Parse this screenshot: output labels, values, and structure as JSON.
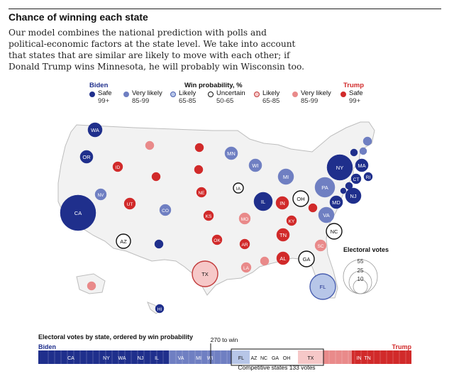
{
  "header": {
    "title": "Chance of winning each state",
    "description": "Our model combines the national prediction with polls and political-economic factors at the state level. We take into account that states that are similar are likely to move with each other; if Donald Trump wins Minnesota, he will probably win Wisconsin too."
  },
  "legend": {
    "biden_label": "Biden",
    "trump_label": "Trump",
    "heading": "Win probability, %",
    "items": [
      {
        "name": "Safe",
        "range": "99+",
        "fill": "#1f2f8c",
        "stroke": "#1f2f8c"
      },
      {
        "name": "Very likely",
        "range": "85-99",
        "fill": "#6f7fc2",
        "stroke": "#6f7fc2"
      },
      {
        "name": "Likely",
        "range": "65-85",
        "fill": "#b7c6e8",
        "stroke": "#4a5fb0"
      },
      {
        "name": "Uncertain",
        "range": "50-65",
        "fill": "#ffffff",
        "stroke": "#111111"
      },
      {
        "name": "Likely",
        "range": "65-85",
        "fill": "#f6c8c8",
        "stroke": "#c23b3b"
      },
      {
        "name": "Very likely",
        "range": "85-99",
        "fill": "#e98a8a",
        "stroke": "#e98a8a"
      },
      {
        "name": "Safe",
        "range": "99+",
        "fill": "#d12a2a",
        "stroke": "#d12a2a"
      }
    ]
  },
  "colors": {
    "biden_safe": "#1f2f8c",
    "biden_very_likely": "#6f7fc2",
    "biden_likely": "#b7c6e8",
    "uncertain": "#ffffff",
    "trump_likely": "#f6c8c8",
    "trump_very_likely": "#e98a8a",
    "trump_safe": "#d12a2a",
    "map_land": "#f2f2f2",
    "map_border": "#bdbdbd"
  },
  "states": [
    {
      "abbr": "WA",
      "category": "biden_safe",
      "labeled": true
    },
    {
      "abbr": "OR",
      "category": "biden_safe",
      "labeled": true
    },
    {
      "abbr": "CA",
      "category": "biden_safe",
      "labeled": true
    },
    {
      "abbr": "NV",
      "category": "biden_very_likely",
      "labeled": true
    },
    {
      "abbr": "ID",
      "category": "trump_safe",
      "labeled": true
    },
    {
      "abbr": "MT",
      "category": "trump_very_likely",
      "labeled": false
    },
    {
      "abbr": "UT",
      "category": "trump_safe",
      "labeled": true
    },
    {
      "abbr": "AZ",
      "category": "uncertain",
      "labeled": true
    },
    {
      "abbr": "CO",
      "category": "biden_very_likely",
      "labeled": true
    },
    {
      "abbr": "NM",
      "category": "biden_safe",
      "labeled": false
    },
    {
      "abbr": "WY",
      "category": "trump_safe",
      "labeled": false
    },
    {
      "abbr": "ND",
      "category": "trump_safe",
      "labeled": false
    },
    {
      "abbr": "SD",
      "category": "trump_safe",
      "labeled": false
    },
    {
      "abbr": "NE",
      "category": "trump_safe",
      "labeled": true
    },
    {
      "abbr": "KS",
      "category": "trump_safe",
      "labeled": true
    },
    {
      "abbr": "OK",
      "category": "trump_safe",
      "labeled": true
    },
    {
      "abbr": "TX",
      "category": "trump_likely",
      "labeled": true
    },
    {
      "abbr": "MN",
      "category": "biden_very_likely",
      "labeled": true
    },
    {
      "abbr": "IA",
      "category": "uncertain",
      "labeled": true
    },
    {
      "abbr": "MO",
      "category": "trump_very_likely",
      "labeled": true
    },
    {
      "abbr": "AR",
      "category": "trump_safe",
      "labeled": true
    },
    {
      "abbr": "LA",
      "category": "trump_very_likely",
      "labeled": true
    },
    {
      "abbr": "WI",
      "category": "biden_very_likely",
      "labeled": true
    },
    {
      "abbr": "IL",
      "category": "biden_safe",
      "labeled": true
    },
    {
      "abbr": "MI",
      "category": "biden_very_likely",
      "labeled": true
    },
    {
      "abbr": "IN",
      "category": "trump_safe",
      "labeled": true
    },
    {
      "abbr": "OH",
      "category": "uncertain",
      "labeled": true
    },
    {
      "abbr": "KY",
      "category": "trump_safe",
      "labeled": true
    },
    {
      "abbr": "TN",
      "category": "trump_safe",
      "labeled": true
    },
    {
      "abbr": "MS",
      "category": "trump_very_likely",
      "labeled": false
    },
    {
      "abbr": "AL",
      "category": "trump_safe",
      "labeled": true
    },
    {
      "abbr": "GA",
      "category": "uncertain",
      "labeled": true
    },
    {
      "abbr": "FL",
      "category": "biden_likely",
      "labeled": true
    },
    {
      "abbr": "SC",
      "category": "trump_very_likely",
      "labeled": true
    },
    {
      "abbr": "NC",
      "category": "uncertain",
      "labeled": true
    },
    {
      "abbr": "VA",
      "category": "biden_very_likely",
      "labeled": true
    },
    {
      "abbr": "WV",
      "category": "trump_safe",
      "labeled": false
    },
    {
      "abbr": "PA",
      "category": "biden_very_likely",
      "labeled": true
    },
    {
      "abbr": "NY",
      "category": "biden_safe",
      "labeled": true
    },
    {
      "abbr": "NJ",
      "category": "biden_safe",
      "labeled": true
    },
    {
      "abbr": "MD",
      "category": "biden_safe",
      "labeled": true
    },
    {
      "abbr": "DE",
      "category": "biden_safe",
      "labeled": false
    },
    {
      "abbr": "CT",
      "category": "biden_safe",
      "labeled": true
    },
    {
      "abbr": "RI",
      "category": "biden_safe",
      "labeled": true
    },
    {
      "abbr": "MA",
      "category": "biden_safe",
      "labeled": true
    },
    {
      "abbr": "VT",
      "category": "biden_safe",
      "labeled": false
    },
    {
      "abbr": "NH",
      "category": "biden_very_likely",
      "labeled": false
    },
    {
      "abbr": "ME",
      "category": "biden_very_likely",
      "labeled": false
    },
    {
      "abbr": "AK",
      "category": "trump_very_likely",
      "labeled": false
    },
    {
      "abbr": "HI",
      "category": "biden_safe",
      "labeled": true
    },
    {
      "abbr": "DC",
      "category": "biden_safe",
      "labeled": false
    }
  ],
  "electoral_votes_legend": {
    "title": "Electoral votes",
    "values": [
      "55",
      "25",
      "10"
    ]
  },
  "bar": {
    "title": "Electoral votes by state, ordered by win probability",
    "biden_label": "Biden",
    "trump_label": "Trump",
    "threshold_label": "270 to win",
    "competitive_label": "Competitive states 133 votes",
    "segment_labels": [
      "CA",
      "NY",
      "WA",
      "NJ",
      "IL",
      "VA",
      "MI",
      "WI",
      "FL",
      "AZ",
      "NC",
      "GA",
      "OH",
      "TX",
      "IN",
      "TN"
    ]
  }
}
